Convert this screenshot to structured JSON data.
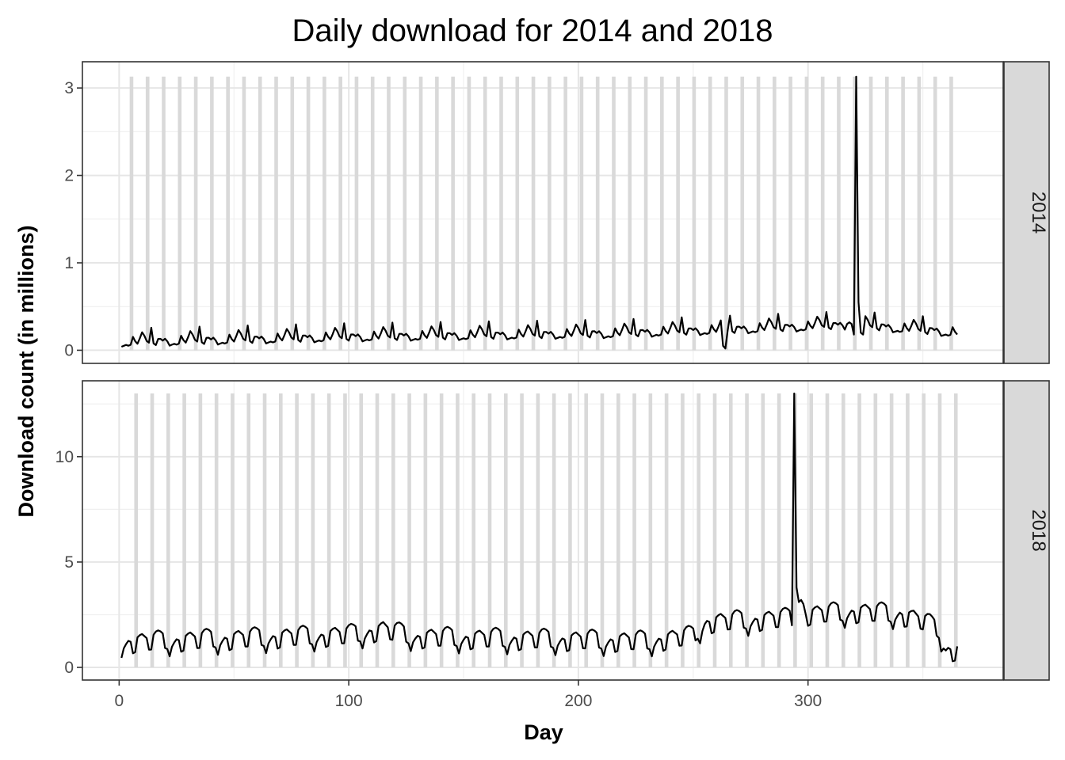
{
  "chart_data": {
    "type": "line",
    "title": "Daily download for 2014 and 2018",
    "xlabel": "Day",
    "ylabel": "Download count (in millions)",
    "xlim": [
      -16,
      385
    ],
    "x_ticks": [
      0,
      100,
      200,
      300
    ],
    "facet_layout": "rows",
    "grid": true,
    "weekend_band_color": "#d9d9d9",
    "line_color": "#000000",
    "panels": [
      {
        "strip_label": "2014",
        "ylim": [
          -0.15,
          3.3
        ],
        "y_ticks": [
          0,
          1,
          2,
          3
        ],
        "y_minor": [
          0.5,
          1.5,
          2.5
        ],
        "weekend_band_top": 3.13,
        "weekend_start_day": 5,
        "base_values": [
          0.04,
          0.05,
          0.06,
          0.05,
          0.06,
          0.15,
          0.1,
          0.07,
          0.13,
          0.2,
          0.16,
          0.1,
          0.08,
          0.25,
          0.07,
          0.05,
          0.12,
          0.12,
          0.1,
          0.12,
          0.09
        ],
        "trend": [
          [
            1,
            0.0
          ],
          [
            100,
            0.06
          ],
          [
            215,
            0.1
          ],
          [
            260,
            0.14
          ],
          [
            320,
            0.2
          ],
          [
            365,
            0.11
          ]
        ],
        "anomalies": [
          [
            263,
            0.05
          ],
          [
            264,
            0.02
          ],
          [
            317,
            0.3
          ],
          [
            318,
            0.32
          ],
          [
            319,
            0.3
          ],
          [
            320,
            0.18
          ],
          [
            321,
            3.13
          ],
          [
            322,
            0.55
          ],
          [
            323,
            0.2
          ],
          [
            324,
            0.18
          ]
        ],
        "notable_points": [
          [
            10,
            0.24
          ],
          [
            14,
            0.26
          ],
          [
            45,
            0.27
          ],
          [
            84,
            0.27
          ],
          [
            217,
            0.31
          ],
          [
            321,
            3.13
          ]
        ]
      },
      {
        "strip_label": "2018",
        "ylim": [
          -0.6,
          13.6
        ],
        "y_ticks": [
          0,
          5,
          10
        ],
        "y_minor": [
          2.5,
          7.5,
          12.5
        ],
        "weekend_band_top": 13.0,
        "weekend_start_day": 7,
        "base_values": [
          0.45,
          0.9,
          1.1,
          1.25,
          1.2,
          0.65,
          0.7,
          1.4,
          1.5,
          1.55,
          1.45,
          1.35,
          0.8,
          0.8,
          1.5,
          1.65,
          1.7,
          1.65,
          1.55,
          0.85,
          0.8
        ],
        "trend": [
          [
            1,
            0.0
          ],
          [
            100,
            0.35
          ],
          [
            115,
            0.6
          ],
          [
            130,
            0.25
          ],
          [
            230,
            0.05
          ],
          [
            250,
            0.3
          ],
          [
            255,
            0.95
          ],
          [
            294,
            1.15
          ],
          [
            296,
            1.3
          ],
          [
            320,
            1.45
          ],
          [
            340,
            1.35
          ],
          [
            350,
            1.0
          ],
          [
            357,
            0.6
          ],
          [
            360,
            -0.3
          ],
          [
            365,
            -0.4
          ]
        ],
        "anomalies": [
          [
            294,
            13.0
          ],
          [
            295,
            3.8
          ],
          [
            296,
            3.1
          ],
          [
            297,
            3.2
          ],
          [
            298,
            3.0
          ]
        ],
        "notable_points": [
          [
            30,
            2.25
          ],
          [
            115,
            2.5
          ],
          [
            294,
            13.0
          ],
          [
            317,
            3.35
          ],
          [
            332,
            3.3
          ]
        ]
      }
    ]
  }
}
